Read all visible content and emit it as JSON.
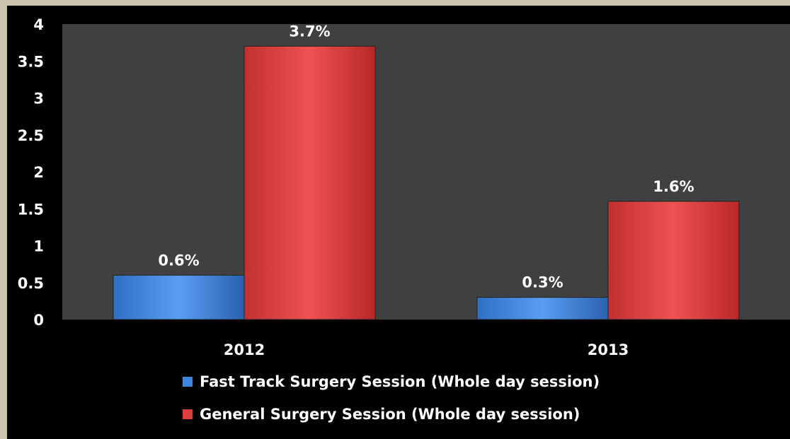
{
  "chart_data": {
    "type": "bar",
    "categories": [
      "2012",
      "2013"
    ],
    "series": [
      {
        "name": "Fast Track Surgery Session (Whole day session)",
        "values": [
          0.6,
          0.3
        ],
        "labels": [
          "0.6%",
          "0.3%"
        ],
        "color": "#3f86e0"
      },
      {
        "name": "General Surgery Session (Whole day session)",
        "values": [
          3.7,
          1.6
        ],
        "labels": [
          "3.7%",
          "1.6%"
        ],
        "color": "#e03d3d"
      }
    ],
    "y_ticks": [
      "0",
      "0.5",
      "1",
      "1.5",
      "2",
      "2.5",
      "3",
      "3.5",
      "4"
    ],
    "ylim": [
      0,
      4
    ],
    "grid": false,
    "legend_position": "bottom",
    "plot_background": "#404040"
  }
}
